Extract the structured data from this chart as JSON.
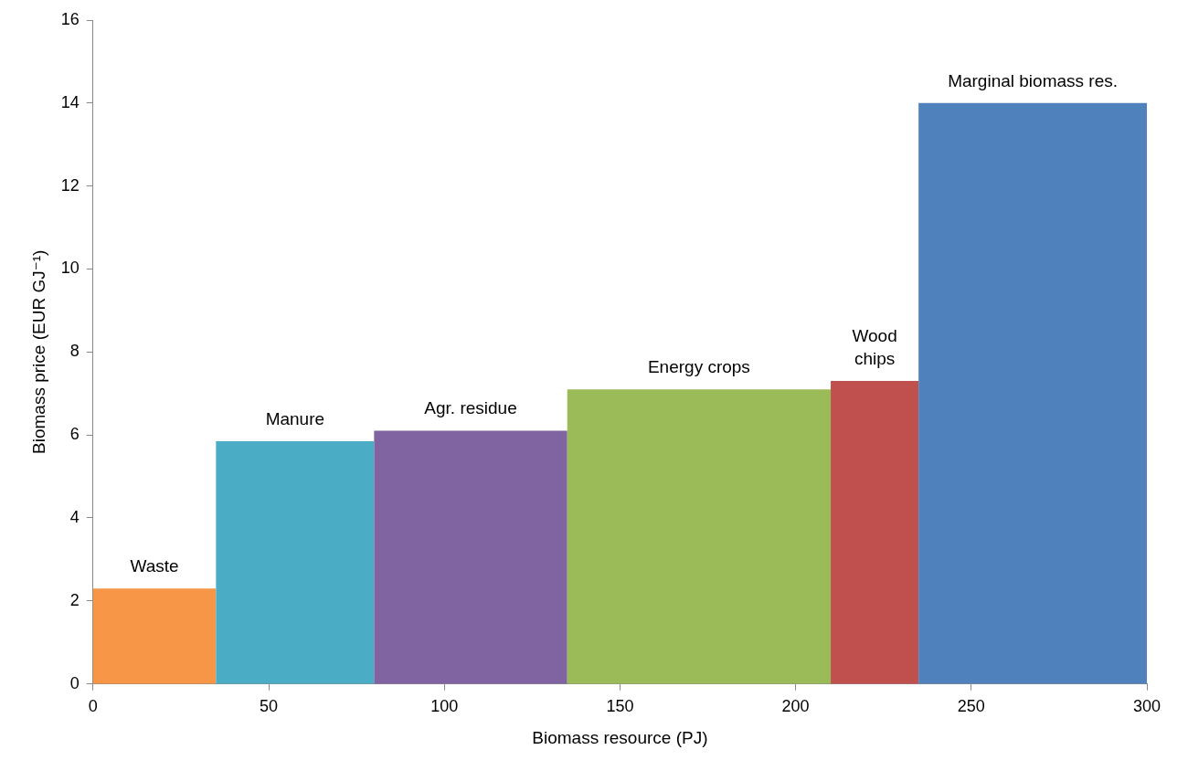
{
  "chart_data": {
    "type": "histogram",
    "xlabel": "Biomass resource (PJ)",
    "ylabel": "Biomass price (EUR GJ⁻¹)",
    "bins": [
      0,
      35,
      80,
      135,
      210,
      235,
      300
    ],
    "values": [
      2.3,
      5.85,
      6.1,
      7.1,
      7.3,
      14
    ],
    "colors": [
      "#f79646",
      "#4bacc6",
      "#8064a2",
      "#9bbb59",
      "#c0504d",
      "#4f81bd"
    ],
    "xlim": [
      0,
      300
    ],
    "xticks": [
      0,
      50,
      100,
      150,
      200,
      250,
      300
    ],
    "ylim": [
      0,
      16
    ],
    "yticks": [
      0,
      2,
      4,
      6,
      8,
      10,
      12,
      14,
      16
    ],
    "grid": false,
    "legend": false,
    "annotations": [
      {
        "text": "Waste",
        "x": 17.5,
        "y": 2.3
      },
      {
        "text": "Manure",
        "x": 57.5,
        "y": 5.85
      },
      {
        "text": "Agr. residue",
        "x": 107.5,
        "y": 6.1
      },
      {
        "text": "Energy crops",
        "x": 172.5,
        "y": 7.1
      },
      {
        "text": "Wood\nchips",
        "x": 222.5,
        "y": 7.3
      },
      {
        "text": "Marginal biomass res.",
        "x": 267.5,
        "y": 14
      }
    ]
  }
}
